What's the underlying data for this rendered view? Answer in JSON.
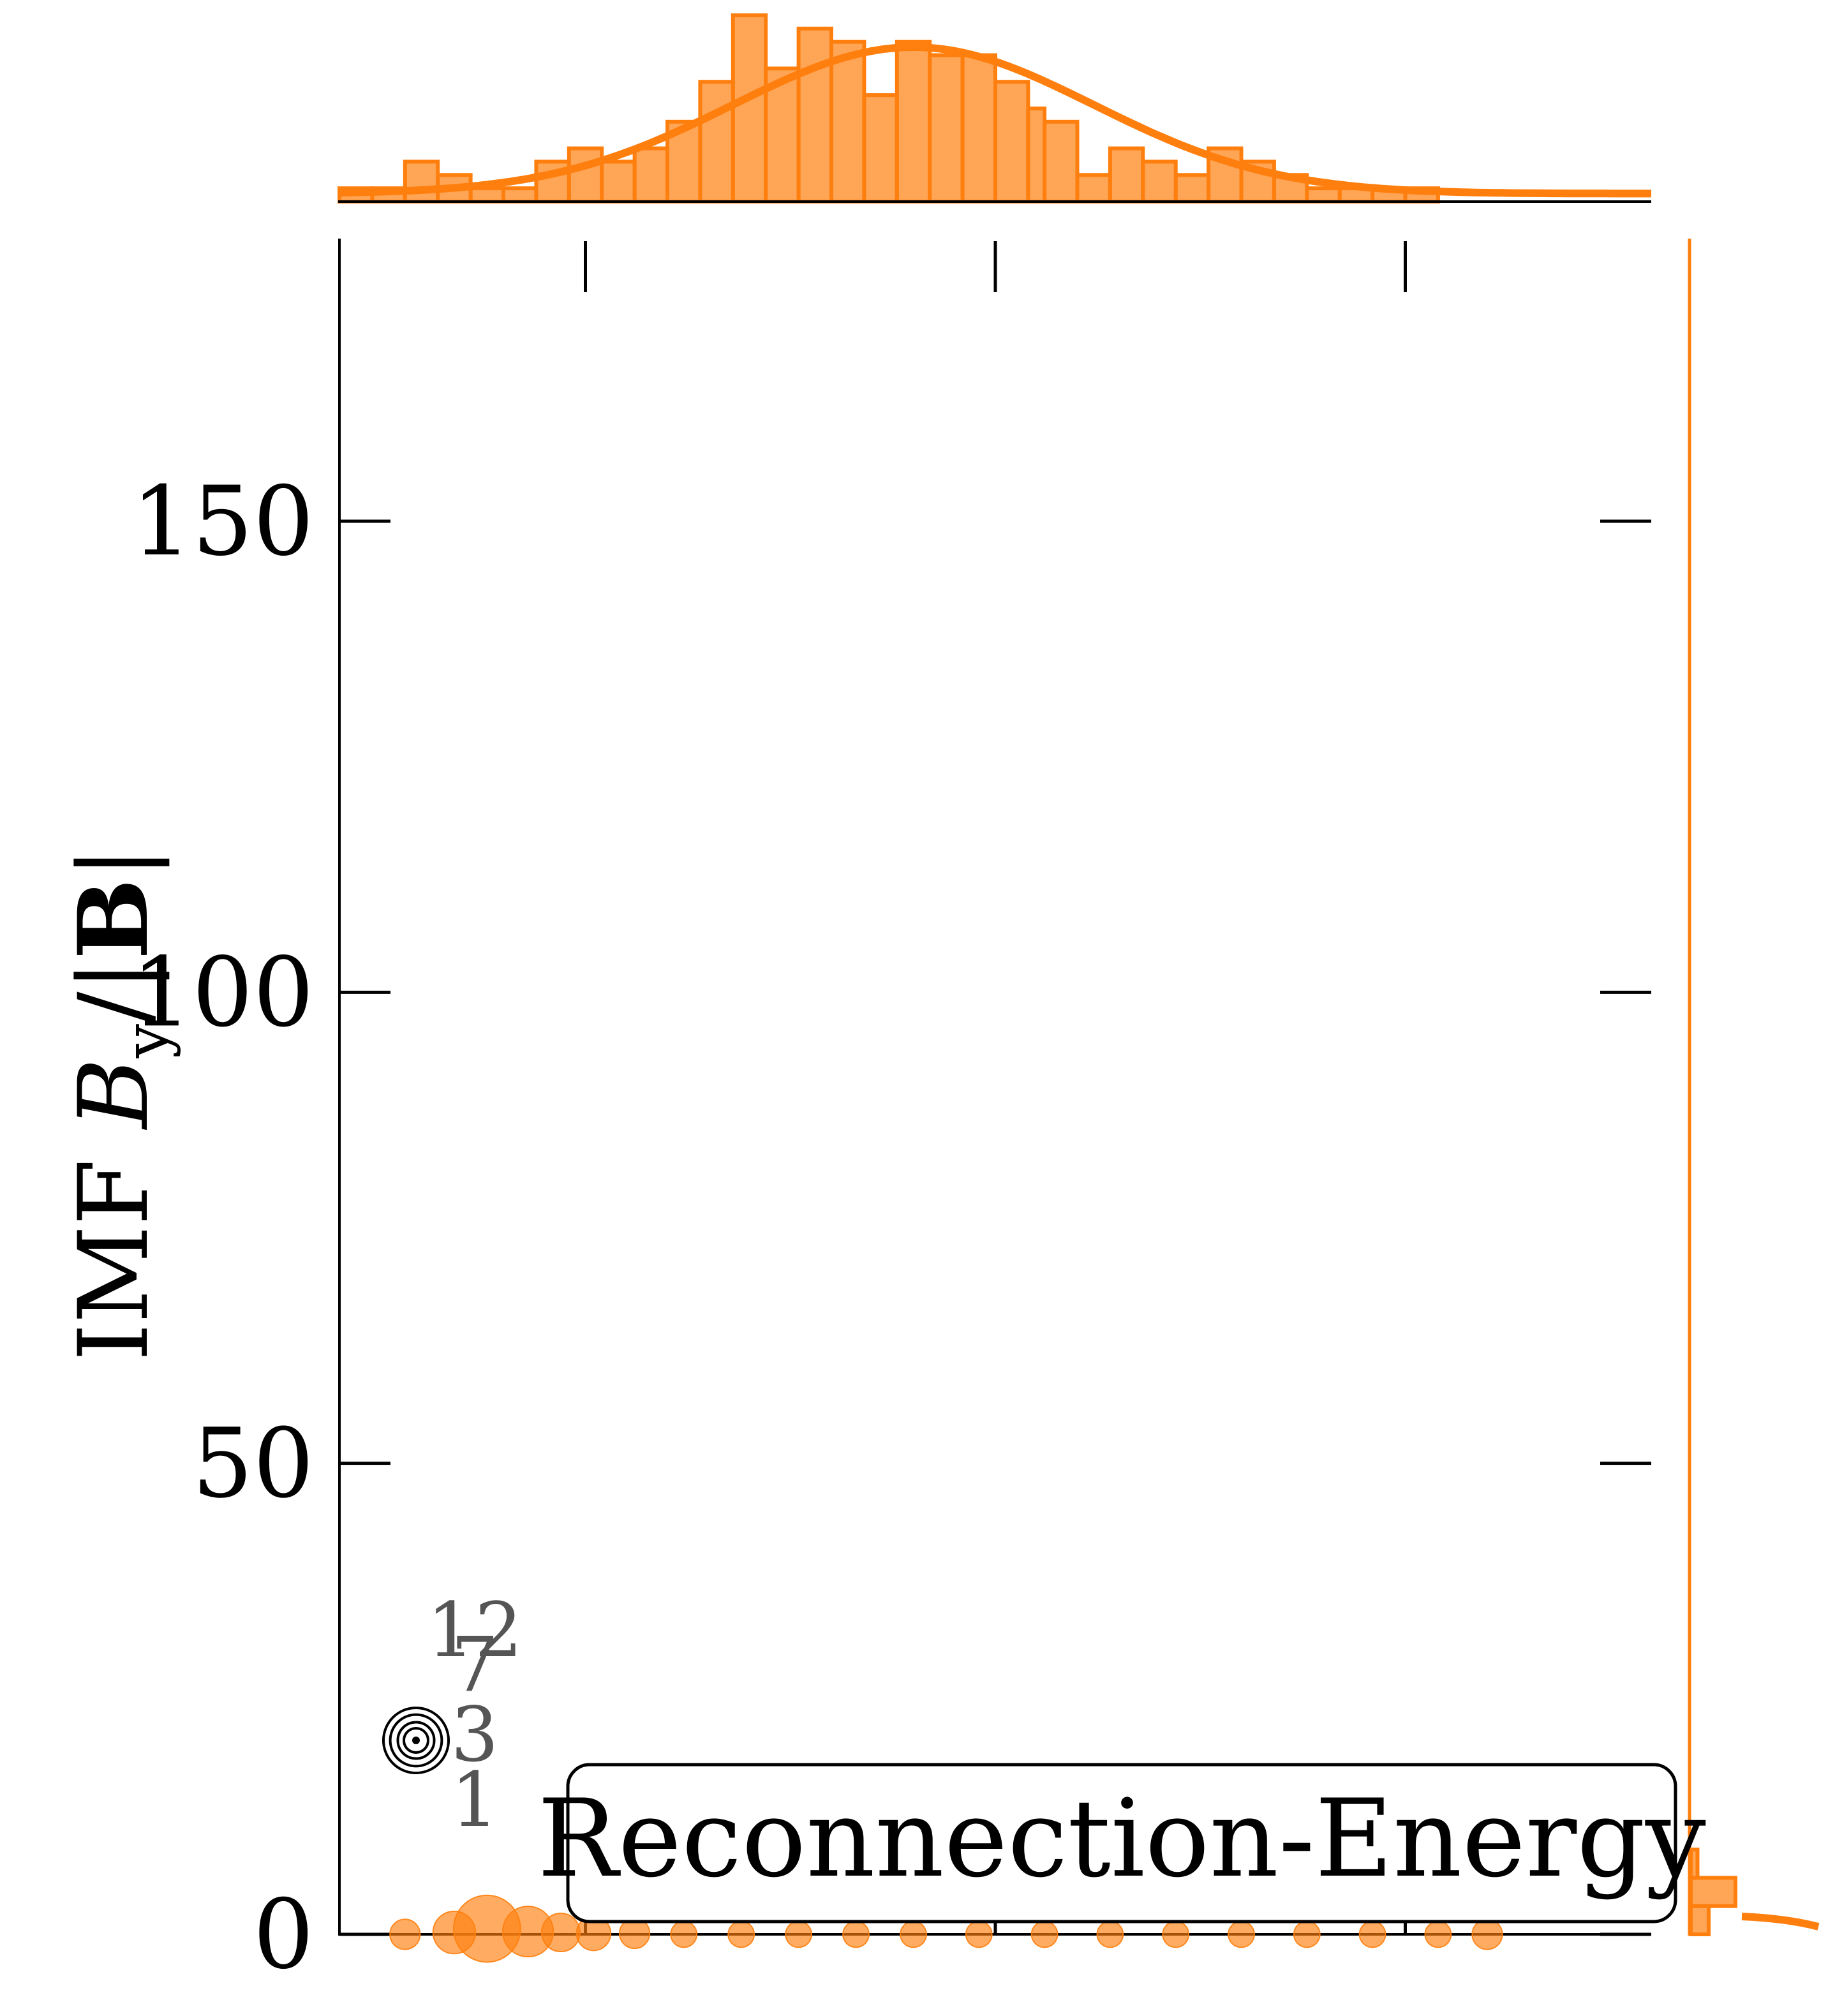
{
  "chart_data": {
    "type": "scatter",
    "title": "",
    "ylabel": "IMF B_y/|B|",
    "ylabel_parts": {
      "prefix": "IMF ",
      "var": "B",
      "sub": "y",
      "slash": "/|",
      "bold": "B",
      "suffix": "|"
    },
    "xlabel": "",
    "ylim": [
      0,
      180
    ],
    "yticks": [
      0,
      50,
      100,
      150
    ],
    "ytick_labels": [
      "0",
      "50",
      "100",
      "150"
    ],
    "xlim": [
      0,
      16
    ],
    "xticks": [
      3,
      8,
      13
    ],
    "grid": false,
    "legend_label": "Reconnection-Energy",
    "legend_placement": "lower-right",
    "size_legend": {
      "labels": [
        "1",
        "3",
        "7",
        "12"
      ],
      "values": [
        1,
        3,
        7,
        12
      ]
    },
    "series": [
      {
        "color": "#ff7f0e",
        "points": [
          {
            "x": 0.8,
            "y": 0.0,
            "s": 3
          },
          {
            "x": 1.4,
            "y": 0.2,
            "s": 6
          },
          {
            "x": 1.8,
            "y": 0.6,
            "s": 12
          },
          {
            "x": 2.3,
            "y": 0.3,
            "s": 8
          },
          {
            "x": 2.7,
            "y": 0.2,
            "s": 5
          },
          {
            "x": 3.1,
            "y": 0.1,
            "s": 4
          },
          {
            "x": 3.6,
            "y": 0.1,
            "s": 3
          },
          {
            "x": 4.2,
            "y": 0.0,
            "s": 2
          },
          {
            "x": 4.9,
            "y": 0.0,
            "s": 2
          },
          {
            "x": 5.6,
            "y": 0.0,
            "s": 2
          },
          {
            "x": 6.3,
            "y": 0.0,
            "s": 2
          },
          {
            "x": 7.0,
            "y": 0.0,
            "s": 2
          },
          {
            "x": 7.8,
            "y": 0.0,
            "s": 2
          },
          {
            "x": 8.6,
            "y": 0.0,
            "s": 2
          },
          {
            "x": 9.4,
            "y": 0.0,
            "s": 2
          },
          {
            "x": 10.2,
            "y": 0.0,
            "s": 2
          },
          {
            "x": 11.0,
            "y": 0.0,
            "s": 2
          },
          {
            "x": 11.8,
            "y": 0.0,
            "s": 2
          },
          {
            "x": 12.6,
            "y": 0.0,
            "s": 2
          },
          {
            "x": 13.4,
            "y": 0.0,
            "s": 2
          },
          {
            "x": 14.0,
            "y": 0.0,
            "s": 3
          }
        ]
      }
    ],
    "marginal_x_hist": {
      "bins": [
        0.0,
        0.4,
        0.8,
        1.2,
        1.6,
        2.0,
        2.4,
        2.8,
        3.2,
        3.6,
        4.0,
        4.4,
        4.8,
        5.2,
        5.6,
        6.0,
        6.4,
        6.8,
        7.2,
        7.6,
        8.0,
        8.4,
        8.6,
        9.0,
        9.4,
        9.8,
        10.2,
        10.6,
        11.0,
        11.4,
        11.8,
        12.2,
        12.6,
        13.0,
        13.4,
        13.8,
        14.2,
        14.6,
        15.0,
        15.4,
        15.8,
        16.0
      ],
      "counts": [
        1,
        1,
        3,
        2,
        1,
        1,
        3,
        4,
        3,
        4,
        6,
        9,
        14,
        10,
        13,
        12,
        8,
        12,
        11,
        11,
        9,
        7,
        6,
        2,
        4,
        3,
        2,
        4,
        3,
        2,
        1,
        1,
        1,
        1,
        0,
        0,
        0,
        0,
        0,
        0,
        0
      ],
      "kde_peak_x": 7.0,
      "kde_peak_count": 11,
      "kde_sigma": 2.2
    },
    "marginal_y_hist": {
      "bins": [
        0,
        3,
        6,
        9
      ],
      "counts": [
        8,
        20,
        3
      ]
    }
  }
}
